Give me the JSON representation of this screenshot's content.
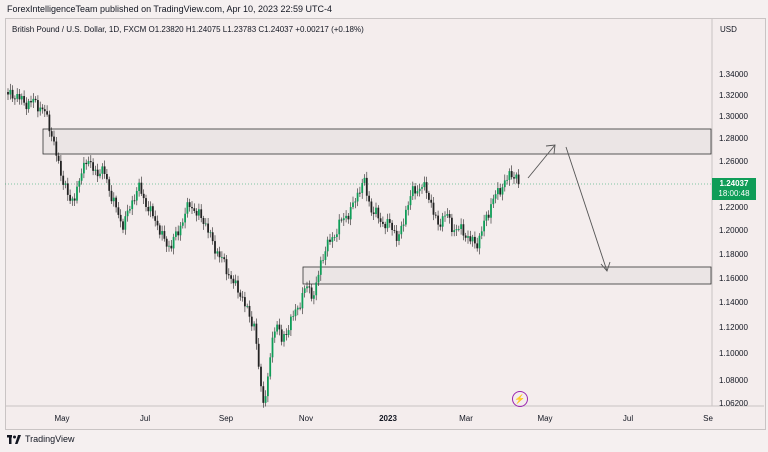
{
  "header": {
    "published": "ForexIntelligenceTeam published on TradingView.com, Apr 10, 2023 22:59 UTC-4"
  },
  "symbol": {
    "info": "British Pound / U.S. Dollar, 1D, FXCM  O1.23820  H1.24075  L1.23783  C1.24037  +0.00217 (+0.18%)",
    "currency": "USD"
  },
  "price_axis": [
    "1.34000",
    "1.32000",
    "1.30000",
    "1.28000",
    "1.26000",
    "1.24000",
    "1.22000",
    "1.20000",
    "1.18000",
    "1.16000",
    "1.14000",
    "1.12000",
    "1.10000",
    "1.08000",
    "1.06200"
  ],
  "time_axis": [
    "May",
    "Jul",
    "Sep",
    "Nov",
    "2023",
    "Mar",
    "May",
    "Jul",
    "Se"
  ],
  "last_price": {
    "value": "1.24037",
    "countdown": "18:00:48",
    "color": "#0f9d58"
  },
  "footer": {
    "brand": "TradingView"
  },
  "colors": {
    "up": "#0f9d58",
    "down": "#222222",
    "zone": "#e8e2e2",
    "accent": "#9c27b0"
  }
}
